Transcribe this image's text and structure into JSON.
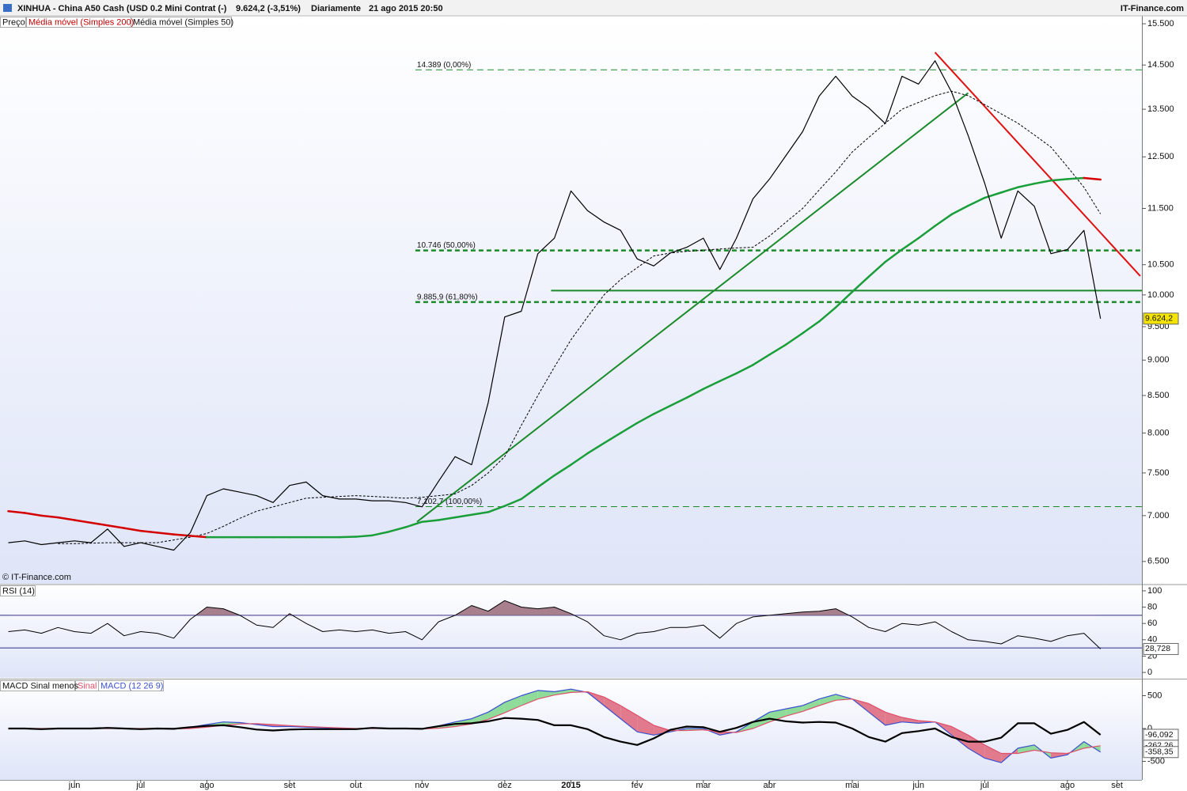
{
  "chart_data": [
    {
      "type": "line",
      "log": true,
      "title": "XINHUA - China A50 Cash (USD 0.2 Mini Contrat (-)",
      "quote": "9.624,2 (-3,51%)",
      "period": "Diariamente",
      "date": "21 ago 2015 20:50",
      "source": "IT-Finance.com",
      "copyright": "© IT-Finance.com",
      "ylim": [
        6270,
        15700
      ],
      "yticks": [
        {
          "value": 6500,
          "label": "6.500"
        },
        {
          "value": 7000,
          "label": "7.000"
        },
        {
          "value": 7500,
          "label": "7.500"
        },
        {
          "value": 8000,
          "label": "8.000"
        },
        {
          "value": 8500,
          "label": "8.500"
        },
        {
          "value": 9000,
          "label": "9.000"
        },
        {
          "value": 9500,
          "label": "9.500"
        },
        {
          "value": 10000,
          "label": "10.000"
        },
        {
          "value": 10500,
          "label": "10.500"
        },
        {
          "value": 11500,
          "label": "11.500"
        },
        {
          "value": 12500,
          "label": "12.500"
        },
        {
          "value": 13500,
          "label": "13.500"
        },
        {
          "value": 14500,
          "label": "14.500"
        },
        {
          "value": 15500,
          "label": "15.500"
        }
      ],
      "series": [
        {
          "name": "Preço",
          "color": "#000000",
          "last_label": "9.624,2",
          "label_color": "#f5e400",
          "values": [
            6700,
            6720,
            6680,
            6700,
            6720,
            6700,
            6850,
            6660,
            6700,
            6660,
            6620,
            6810,
            7230,
            7310,
            7270,
            7230,
            7150,
            7350,
            7390,
            7230,
            7190,
            7190,
            7170,
            7170,
            7150,
            7100,
            7400,
            7700,
            7600,
            8400,
            9650,
            9740,
            10690,
            10960,
            11830,
            11460,
            11250,
            11100,
            10600,
            10480,
            10700,
            10800,
            10960,
            10420,
            10960,
            11680,
            12060,
            12530,
            13020,
            13790,
            14240,
            13790,
            13530,
            13190,
            14240,
            14060,
            14600,
            13880,
            12940,
            11980,
            10960,
            11830,
            11540,
            10690,
            10760,
            11100,
            9624.2,
            null,
            null
          ]
        },
        {
          "name": "Média móvel (Simples 200)",
          "color": "#1a9e3a",
          "down_color": "#d40000",
          "values": [
            7050,
            7030,
            7000,
            6980,
            6950,
            6920,
            6890,
            6860,
            6830,
            6810,
            6790,
            6775,
            6760,
            6760,
            6760,
            6760,
            6760,
            6760,
            6760,
            6760,
            6760,
            6765,
            6780,
            6820,
            6870,
            6930,
            6950,
            6980,
            7010,
            7040,
            7110,
            7190,
            7330,
            7470,
            7600,
            7740,
            7870,
            8000,
            8130,
            8250,
            8360,
            8470,
            8590,
            8700,
            8810,
            8930,
            9080,
            9230,
            9400,
            9580,
            9800,
            10050,
            10300,
            10550,
            10760,
            10960,
            11180,
            11390,
            11550,
            11700,
            11800,
            11900,
            11970,
            12030,
            12060,
            12080,
            12050,
            null,
            null
          ]
        },
        {
          "name": "Média móvel (Simples 50)",
          "color": "#000000",
          "dashed": true,
          "values": [
            null,
            null,
            null,
            6690,
            6690,
            6695,
            6700,
            6700,
            6700,
            6700,
            6730,
            6760,
            6800,
            6880,
            6970,
            7050,
            7100,
            7150,
            7200,
            7210,
            7220,
            7230,
            7220,
            7210,
            7200,
            7210,
            7230,
            7250,
            7350,
            7500,
            7700,
            8100,
            8500,
            8900,
            9300,
            9650,
            10000,
            10250,
            10450,
            10650,
            10700,
            10730,
            10750,
            10770,
            10790,
            10800,
            11000,
            11250,
            11500,
            11850,
            12200,
            12600,
            12900,
            13200,
            13500,
            13650,
            13800,
            13900,
            13800,
            13600,
            13400,
            13200,
            12950,
            12700,
            12300,
            11900,
            11400,
            null,
            null
          ]
        }
      ],
      "levels": [
        {
          "value": 14389,
          "label": "14.389 (0,00%)",
          "from": 24.6,
          "weight": "light"
        },
        {
          "value": 10746,
          "label": "10.746 (50,00%)",
          "from": 24.6,
          "weight": "heavy"
        },
        {
          "value": 9885.9,
          "label": "9.885,9 (61,80%)",
          "from": 24.6,
          "weight": "heavy"
        },
        {
          "value": 7102.7,
          "label": "7.102,7 (100,00%)",
          "from": 24.6,
          "weight": "light"
        }
      ],
      "level_color": "#1a8a2a",
      "trendlines": [
        {
          "color": "#1a8a2a",
          "points": [
            [
              24.7,
              6930
            ],
            [
              58,
              13860
            ]
          ]
        },
        {
          "color": "#1a8a2a",
          "points": [
            [
              32.8,
              10070
            ],
            [
              68.5,
              10070
            ]
          ]
        },
        {
          "color": "#e01010",
          "points": [
            [
              56,
              14800
            ],
            [
              68.4,
              10310
            ]
          ]
        }
      ]
    },
    {
      "type": "line",
      "ylim": [
        -6.7,
        106.7
      ],
      "yticks": [
        100,
        80,
        60,
        40,
        20,
        0
      ],
      "levels": [
        70,
        30
      ],
      "level_color": "#2b2b8a",
      "overbought_fill": "#a87f8c",
      "series": [
        {
          "name": "RSI (14)",
          "color": "#000000",
          "last_label": "28,728",
          "label_color": "#ffffff",
          "values": [
            50,
            52,
            48,
            55,
            50,
            48,
            60,
            45,
            50,
            48,
            42,
            65,
            80,
            78,
            70,
            58,
            55,
            72,
            60,
            50,
            52,
            50,
            52,
            48,
            50,
            40,
            62,
            70,
            82,
            75,
            88,
            80,
            78,
            80,
            72,
            62,
            45,
            40,
            48,
            50,
            55,
            55,
            58,
            42,
            60,
            68,
            70,
            72,
            74,
            75,
            78,
            68,
            55,
            50,
            60,
            58,
            62,
            50,
            40,
            38,
            35,
            45,
            42,
            38,
            45,
            48,
            28.728,
            null,
            null
          ]
        }
      ]
    },
    {
      "type": "line",
      "ylim": [
        -783,
        735
      ],
      "yticks": [
        500,
        0,
        -500
      ],
      "fill_up": "#8fdc9a",
      "fill_down": "#e07a8c",
      "categories": [
        null,
        null,
        null,
        null,
        "jun",
        null,
        null,
        null,
        "jul",
        null,
        null,
        null,
        "ago",
        null,
        null,
        null,
        null,
        "set",
        null,
        null,
        null,
        "out",
        null,
        null,
        null,
        "nov",
        null,
        null,
        null,
        null,
        "dez",
        null,
        null,
        null,
        "2015",
        null,
        null,
        null,
        "fev",
        null,
        null,
        null,
        "mar",
        null,
        null,
        null,
        "abr",
        null,
        null,
        null,
        null,
        "mai",
        null,
        null,
        null,
        "jun",
        null,
        null,
        null,
        "jul",
        null,
        null,
        null,
        null,
        "ago",
        null,
        null,
        "set",
        null
      ],
      "series": [
        {
          "name": "MACD Sinal menos",
          "color": "#000000",
          "last_label": "-96,092",
          "label_color": "#ffffff",
          "values": [
            0,
            0,
            -10,
            0,
            0,
            0,
            10,
            0,
            -10,
            0,
            -5,
            20,
            40,
            50,
            20,
            -15,
            -30,
            -15,
            -10,
            -10,
            -10,
            -10,
            10,
            0,
            0,
            -5,
            35,
            70,
            80,
            110,
            160,
            150,
            130,
            50,
            50,
            -10,
            -130,
            -200,
            -250,
            -150,
            -20,
            30,
            20,
            -50,
            10,
            100,
            150,
            110,
            90,
            100,
            90,
            0,
            -130,
            -200,
            -70,
            -40,
            0,
            -130,
            -200,
            -200,
            -140,
            80,
            80,
            -80,
            -20,
            100,
            -96.092,
            null,
            null
          ]
        },
        {
          "name": "Sinal",
          "color": "#e0506a",
          "last_label": "-262,26",
          "label_color": "#ffffff",
          "values": [
            0,
            0,
            0,
            0,
            0,
            0,
            0,
            0,
            0,
            0,
            -5,
            0,
            20,
            50,
            70,
            75,
            60,
            45,
            30,
            20,
            10,
            0,
            0,
            0,
            0,
            -5,
            5,
            30,
            70,
            140,
            240,
            350,
            450,
            510,
            550,
            560,
            480,
            350,
            200,
            50,
            -30,
            -30,
            -20,
            -50,
            -60,
            0,
            100,
            190,
            260,
            350,
            430,
            450,
            380,
            250,
            170,
            120,
            100,
            30,
            -100,
            -250,
            -380,
            -380,
            -330,
            -370,
            -380,
            -300,
            -262.26,
            null,
            null
          ]
        },
        {
          "name": "MACD (12 26 9)",
          "color": "#3a4fd0",
          "last_label": "-358,35",
          "label_color": "#ffffff",
          "values": [
            0,
            0,
            -10,
            0,
            0,
            0,
            10,
            0,
            -10,
            0,
            -10,
            20,
            60,
            100,
            90,
            60,
            30,
            30,
            20,
            10,
            0,
            -10,
            10,
            0,
            0,
            -10,
            40,
            100,
            150,
            250,
            400,
            500,
            580,
            560,
            600,
            550,
            350,
            150,
            -50,
            -100,
            -50,
            0,
            0,
            -100,
            -50,
            100,
            250,
            300,
            350,
            450,
            520,
            450,
            250,
            50,
            100,
            80,
            100,
            -100,
            -300,
            -450,
            -520,
            -300,
            -250,
            -450,
            -400,
            -200,
            -358.35,
            null,
            null
          ]
        }
      ]
    }
  ]
}
